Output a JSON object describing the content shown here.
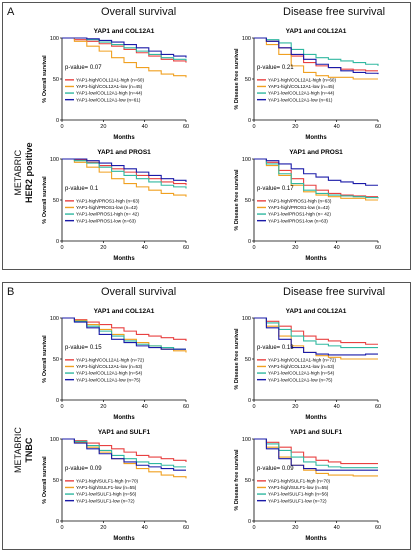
{
  "panels": [
    {
      "letter": "A",
      "left_title": "Overall survival",
      "right_title": "Disease free survival",
      "side_line1": "METABRIC",
      "side_line2": "HER2 positive"
    },
    {
      "letter": "B",
      "left_title": "Overall survival",
      "right_title": "Disease free survival",
      "side_line1": "METABRIC",
      "side_line2": "TNBC"
    }
  ],
  "series_colors": [
    "#e84040",
    "#f0a020",
    "#30b8a0",
    "#1a1aa8"
  ],
  "chart_data": [
    {
      "type": "line",
      "title": "YAP1 and COL12A1",
      "xlabel": "Months",
      "ylabel": "% Overall survival",
      "xlim": [
        0,
        60
      ],
      "ylim": [
        0,
        100
      ],
      "xticks": [
        0,
        20,
        40,
        60
      ],
      "yticks": [
        0,
        50,
        100
      ],
      "annotation": "p-value= 0.07",
      "series": [
        {
          "name": "YAP1-high/COL12A1-high (n=60)",
          "x": [
            0,
            6,
            12,
            18,
            24,
            30,
            36,
            42,
            48,
            54,
            60
          ],
          "y": [
            100,
            98,
            96,
            93,
            90,
            86,
            82,
            78,
            74,
            72,
            70
          ]
        },
        {
          "name": "YAP1-high/COL12A1-low (n=45)",
          "x": [
            0,
            6,
            12,
            18,
            24,
            30,
            36,
            42,
            48,
            54,
            60
          ],
          "y": [
            100,
            96,
            90,
            84,
            76,
            70,
            64,
            60,
            56,
            54,
            52
          ]
        },
        {
          "name": "YAP1-low/COL12A1-high (n=44)",
          "x": [
            0,
            6,
            12,
            18,
            24,
            30,
            36,
            42,
            48,
            54,
            60
          ],
          "y": [
            100,
            100,
            98,
            95,
            92,
            88,
            84,
            80,
            76,
            74,
            72
          ]
        },
        {
          "name": "YAP1-low/COL12A1-low (n=61)",
          "x": [
            0,
            6,
            12,
            18,
            24,
            30,
            36,
            42,
            48,
            54,
            60
          ],
          "y": [
            100,
            100,
            99,
            97,
            95,
            92,
            88,
            84,
            80,
            78,
            76
          ]
        }
      ]
    },
    {
      "type": "line",
      "title": "YAP1 and COL12A1",
      "xlabel": "Months",
      "ylabel": "% Disease free survival",
      "xlim": [
        0,
        60
      ],
      "ylim": [
        0,
        100
      ],
      "xticks": [
        0,
        20,
        40,
        60
      ],
      "yticks": [
        0,
        50,
        100
      ],
      "annotation": "p-value= 0.21",
      "series": [
        {
          "name": "YAP1-high/COL12A1-high (n=60)",
          "x": [
            0,
            6,
            12,
            18,
            24,
            30,
            36,
            42,
            48,
            54,
            60
          ],
          "y": [
            100,
            96,
            88,
            78,
            70,
            66,
            64,
            62,
            61,
            60,
            60
          ]
        },
        {
          "name": "YAP1-high/COL12A1-low (n=45)",
          "x": [
            0,
            6,
            12,
            18,
            24,
            30,
            36,
            42,
            48,
            54,
            60
          ],
          "y": [
            100,
            92,
            80,
            66,
            58,
            54,
            52,
            52,
            50,
            50,
            50
          ]
        },
        {
          "name": "YAP1-low/COL12A1-high (n=44)",
          "x": [
            0,
            6,
            12,
            18,
            24,
            30,
            36,
            42,
            48,
            54,
            60
          ],
          "y": [
            100,
            98,
            94,
            86,
            80,
            76,
            74,
            72,
            70,
            68,
            66
          ]
        },
        {
          "name": "YAP1-low/COL12A1-low (n=61)",
          "x": [
            0,
            6,
            12,
            18,
            24,
            30,
            36,
            42,
            48,
            54,
            60
          ],
          "y": [
            100,
            96,
            88,
            80,
            74,
            68,
            64,
            60,
            58,
            57,
            56
          ]
        }
      ]
    },
    {
      "type": "line",
      "title": "YAP1 and PROS1",
      "xlabel": "Months",
      "ylabel": "% Overall survival",
      "xlim": [
        0,
        60
      ],
      "ylim": [
        0,
        100
      ],
      "xticks": [
        0,
        20,
        40,
        60
      ],
      "yticks": [
        0,
        50,
        100
      ],
      "annotation": "p-value= 0.1",
      "series": [
        {
          "name": "YAP1-high/PROS1-high (n=63)",
          "x": [
            0,
            6,
            12,
            18,
            24,
            30,
            36,
            42,
            48,
            54,
            60
          ],
          "y": [
            100,
            99,
            96,
            92,
            88,
            84,
            80,
            76,
            72,
            70,
            68
          ]
        },
        {
          "name": "YAP1-high/PROS1-low (n=42)",
          "x": [
            0,
            6,
            12,
            18,
            24,
            30,
            36,
            42,
            48,
            54,
            60
          ],
          "y": [
            100,
            96,
            90,
            84,
            76,
            70,
            66,
            62,
            58,
            56,
            54
          ]
        },
        {
          "name": "YAP1-low/PROS1-high (n= 42)",
          "x": [
            0,
            6,
            12,
            18,
            24,
            30,
            36,
            42,
            48,
            54,
            60
          ],
          "y": [
            100,
            98,
            95,
            90,
            85,
            80,
            76,
            72,
            68,
            66,
            64
          ]
        },
        {
          "name": "YAP1-low/PROS1-low (n=63)",
          "x": [
            0,
            6,
            12,
            18,
            24,
            30,
            36,
            42,
            48,
            54,
            60
          ],
          "y": [
            100,
            100,
            98,
            95,
            92,
            88,
            84,
            80,
            76,
            74,
            72
          ]
        }
      ]
    },
    {
      "type": "line",
      "title": "YAP1 and PROS1",
      "xlabel": "Months",
      "ylabel": "% Disease free survival",
      "xlim": [
        0,
        60
      ],
      "ylim": [
        0,
        100
      ],
      "xticks": [
        0,
        20,
        40,
        60
      ],
      "yticks": [
        0,
        50,
        100
      ],
      "annotation": "p-value= 0.17",
      "series": [
        {
          "name": "YAP1-high/PROS1-high (n=63)",
          "x": [
            0,
            6,
            12,
            18,
            24,
            30,
            36,
            42,
            48,
            54,
            60
          ],
          "y": [
            100,
            96,
            86,
            76,
            68,
            62,
            58,
            56,
            55,
            54,
            54
          ]
        },
        {
          "name": "YAP1-high/PROS1-low (n=42)",
          "x": [
            0,
            6,
            12,
            18,
            24,
            30,
            36,
            42,
            48,
            54,
            60
          ],
          "y": [
            100,
            92,
            80,
            68,
            60,
            56,
            54,
            52,
            52,
            50,
            50
          ]
        },
        {
          "name": "YAP1-low/PROS1-high (n= 42)",
          "x": [
            0,
            6,
            12,
            18,
            24,
            30,
            36,
            42,
            48,
            54,
            60
          ],
          "y": [
            100,
            94,
            82,
            70,
            62,
            58,
            56,
            55,
            54,
            53,
            52
          ]
        },
        {
          "name": "YAP1-low/PROS1-low (n=63)",
          "x": [
            0,
            6,
            12,
            18,
            24,
            30,
            36,
            42,
            48,
            54,
            60
          ],
          "y": [
            100,
            98,
            94,
            88,
            82,
            78,
            74,
            72,
            70,
            68,
            68
          ]
        }
      ]
    },
    {
      "type": "line",
      "title": "YAP1 and COL12A1",
      "xlabel": "Months",
      "ylabel": "% Overall survival",
      "xlim": [
        0,
        60
      ],
      "ylim": [
        0,
        100
      ],
      "xticks": [
        0,
        20,
        40,
        60
      ],
      "yticks": [
        0,
        50,
        100
      ],
      "annotation": "p-value= 0.15",
      "series": [
        {
          "name": "YAP1-high/COL12A1-high (n=72)",
          "x": [
            0,
            6,
            12,
            18,
            24,
            30,
            36,
            42,
            48,
            54,
            60
          ],
          "y": [
            100,
            98,
            95,
            92,
            88,
            84,
            80,
            78,
            76,
            74,
            72
          ]
        },
        {
          "name": "YAP1-high/COL12A1-low (n=53)",
          "x": [
            0,
            6,
            12,
            18,
            24,
            30,
            36,
            42,
            48,
            54,
            60
          ],
          "y": [
            100,
            97,
            92,
            86,
            80,
            74,
            70,
            66,
            62,
            60,
            58
          ]
        },
        {
          "name": "YAP1-low/COL12A1-high (n=54)",
          "x": [
            0,
            6,
            12,
            18,
            24,
            30,
            36,
            42,
            48,
            54,
            60
          ],
          "y": [
            100,
            96,
            90,
            84,
            78,
            72,
            68,
            66,
            64,
            62,
            62
          ]
        },
        {
          "name": "YAP1-low/COL12A1-low (n=75)",
          "x": [
            0,
            6,
            12,
            18,
            24,
            30,
            36,
            42,
            48,
            54,
            60
          ],
          "y": [
            100,
            95,
            88,
            80,
            74,
            70,
            66,
            64,
            62,
            62,
            62
          ]
        }
      ]
    },
    {
      "type": "line",
      "title": "YAP1 and COL12A1",
      "xlabel": "Months",
      "ylabel": "% Disease free survival",
      "xlim": [
        0,
        60
      ],
      "ylim": [
        0,
        100
      ],
      "xticks": [
        0,
        20,
        40,
        60
      ],
      "yticks": [
        0,
        50,
        100
      ],
      "annotation": "p-value= 0.13",
      "series": [
        {
          "name": "YAP1-high/COL12A1-high (n=72)",
          "x": [
            0,
            6,
            12,
            18,
            24,
            30,
            36,
            42,
            48,
            54,
            60
          ],
          "y": [
            100,
            96,
            90,
            84,
            78,
            74,
            72,
            70,
            70,
            68,
            68
          ]
        },
        {
          "name": "YAP1-high/COL12A1-low (n=53)",
          "x": [
            0,
            6,
            12,
            18,
            24,
            30,
            36,
            42,
            48,
            54,
            60
          ],
          "y": [
            100,
            90,
            78,
            66,
            58,
            54,
            52,
            50,
            50,
            50,
            50
          ]
        },
        {
          "name": "YAP1-low/COL12A1-high (n=54)",
          "x": [
            0,
            6,
            12,
            18,
            24,
            30,
            36,
            42,
            48,
            54,
            60
          ],
          "y": [
            100,
            94,
            86,
            78,
            72,
            68,
            66,
            64,
            64,
            64,
            64
          ]
        },
        {
          "name": "YAP1-low/COL12A1-low (n=75)",
          "x": [
            0,
            6,
            12,
            18,
            24,
            30,
            36,
            42,
            48,
            54,
            60
          ],
          "y": [
            100,
            88,
            74,
            64,
            58,
            56,
            55,
            55,
            55,
            56,
            56
          ]
        }
      ]
    },
    {
      "type": "line",
      "title": "YAP1 and SULF1",
      "xlabel": "Months",
      "ylabel": "% Overall survival",
      "xlim": [
        0,
        60
      ],
      "ylim": [
        0,
        100
      ],
      "xticks": [
        0,
        20,
        40,
        60
      ],
      "yticks": [
        0,
        50,
        100
      ],
      "annotation": "p-value= 0.09",
      "series": [
        {
          "name": "YAP1-high/SULF1-high (n=70)",
          "x": [
            0,
            6,
            12,
            18,
            24,
            30,
            36,
            42,
            48,
            54,
            60
          ],
          "y": [
            100,
            98,
            95,
            92,
            88,
            84,
            80,
            78,
            76,
            74,
            72
          ]
        },
        {
          "name": "YAP1-high/SULF1-low (n=55)",
          "x": [
            0,
            6,
            12,
            18,
            24,
            30,
            36,
            42,
            48,
            54,
            60
          ],
          "y": [
            100,
            96,
            90,
            84,
            76,
            70,
            64,
            60,
            56,
            54,
            52
          ]
        },
        {
          "name": "YAP1-low/SULF1-high (n=56)",
          "x": [
            0,
            6,
            12,
            18,
            24,
            30,
            36,
            42,
            48,
            54,
            60
          ],
          "y": [
            100,
            97,
            92,
            86,
            80,
            76,
            72,
            70,
            68,
            66,
            66
          ]
        },
        {
          "name": "YAP1-low/SULF1-low (n=72)",
          "x": [
            0,
            6,
            12,
            18,
            24,
            30,
            36,
            42,
            48,
            54,
            60
          ],
          "y": [
            100,
            95,
            88,
            82,
            76,
            72,
            68,
            66,
            64,
            62,
            62
          ]
        }
      ]
    },
    {
      "type": "line",
      "title": "YAP1 and SULF1",
      "xlabel": "Months",
      "ylabel": "% Disease free survival",
      "xlim": [
        0,
        60
      ],
      "ylim": [
        0,
        100
      ],
      "xticks": [
        0,
        20,
        40,
        60
      ],
      "yticks": [
        0,
        50,
        100
      ],
      "annotation": "p-value= 0.09",
      "series": [
        {
          "name": "YAP1-high/SULF1-high (n=70)",
          "x": [
            0,
            6,
            12,
            18,
            24,
            30,
            36,
            42,
            48,
            54,
            60
          ],
          "y": [
            100,
            96,
            90,
            84,
            78,
            74,
            72,
            70,
            70,
            70,
            70
          ]
        },
        {
          "name": "YAP1-high/SULF1-low (n=55)",
          "x": [
            0,
            6,
            12,
            18,
            24,
            30,
            36,
            42,
            48,
            54,
            60
          ],
          "y": [
            100,
            90,
            78,
            68,
            62,
            58,
            56,
            56,
            55,
            55,
            55
          ]
        },
        {
          "name": "YAP1-low/SULF1-high (n=56)",
          "x": [
            0,
            6,
            12,
            18,
            24,
            30,
            36,
            42,
            48,
            54,
            60
          ],
          "y": [
            100,
            94,
            86,
            78,
            72,
            68,
            66,
            65,
            65,
            65,
            65
          ]
        },
        {
          "name": "YAP1-low/SULF1-low (n=72)",
          "x": [
            0,
            6,
            12,
            18,
            24,
            30,
            36,
            42,
            48,
            54,
            60
          ],
          "y": [
            100,
            88,
            76,
            68,
            64,
            62,
            62,
            62,
            62,
            62,
            62
          ]
        }
      ]
    }
  ]
}
